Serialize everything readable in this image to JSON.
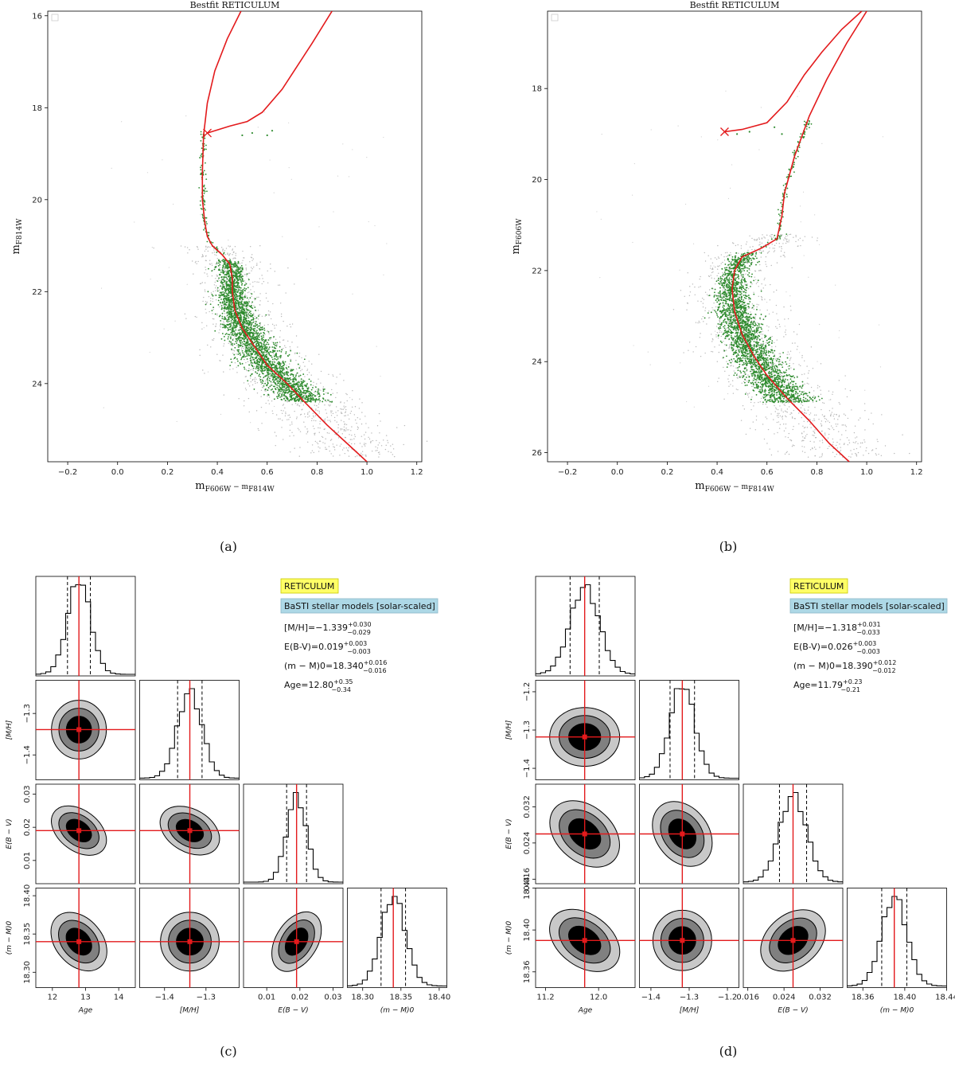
{
  "captions": [
    "(a)",
    "(b)",
    "(c)",
    "(d)"
  ],
  "colors": {
    "isochrone": "#e31a1c",
    "members": "#2e8b2e",
    "field": "#b8b8b8",
    "title_box": "#ffff66",
    "model_box": "#add8e6"
  },
  "chart_data": [
    {
      "type": "scatter",
      "title": "Bestfit RETICULUM",
      "xlabel": "mF606W − mF814W",
      "ylabel": "mF814W",
      "xlim": [
        -0.28,
        1.22
      ],
      "ylim": [
        25.7,
        15.9
      ],
      "y_inverted": true,
      "xticks": [
        -0.2,
        0.0,
        0.2,
        0.4,
        0.6,
        0.8,
        1.0,
        1.2
      ],
      "xtick_labels": [
        "−0.2",
        "0.0",
        "0.2",
        "0.4",
        "0.6",
        "0.8",
        "1.0",
        "1.2"
      ],
      "yticks": [
        16,
        18,
        20,
        22,
        24
      ],
      "ytick_labels": [
        "16",
        "18",
        "20",
        "22",
        "24"
      ],
      "grid": false,
      "isochrone": {
        "rgb": [
          [
            0.495,
            15.9
          ],
          [
            0.44,
            16.5
          ],
          [
            0.39,
            17.2
          ],
          [
            0.36,
            17.9
          ],
          [
            0.345,
            18.6
          ],
          [
            0.34,
            19.4
          ],
          [
            0.34,
            20.0
          ],
          [
            0.35,
            20.5
          ],
          [
            0.36,
            20.8
          ],
          [
            0.38,
            21.0
          ],
          [
            0.42,
            21.2
          ],
          [
            0.45,
            21.4
          ],
          [
            0.46,
            21.7
          ],
          [
            0.46,
            22.0
          ],
          [
            0.47,
            22.4
          ],
          [
            0.5,
            22.8
          ],
          [
            0.55,
            23.2
          ],
          [
            0.6,
            23.6
          ],
          [
            0.68,
            24.0
          ],
          [
            0.75,
            24.4
          ],
          [
            0.84,
            24.9
          ],
          [
            0.92,
            25.3
          ],
          [
            1.0,
            25.7
          ]
        ],
        "hb": [
          [
            0.36,
            18.55
          ],
          [
            0.45,
            18.4
          ],
          [
            0.52,
            18.3
          ],
          [
            0.58,
            18.1
          ],
          [
            0.66,
            17.6
          ],
          [
            0.72,
            17.1
          ],
          [
            0.78,
            16.6
          ],
          [
            0.86,
            15.9
          ]
        ],
        "marker": [
          0.36,
          18.55
        ]
      },
      "members": {
        "ms_y": [
          21.3,
          24.4
        ],
        "ms_to": [
          0.47,
          22.0
        ],
        "ms_spread": 0.025,
        "rgb_y": [
          18.5,
          21.2
        ],
        "n": 2600,
        "hb_points": [
          [
            0.5,
            18.6
          ],
          [
            0.54,
            18.55
          ],
          [
            0.6,
            18.6
          ],
          [
            0.62,
            18.5
          ]
        ]
      },
      "field": {
        "y": [
          21.0,
          25.6
        ],
        "n": 1200,
        "spread": 0.07
      }
    },
    {
      "type": "scatter",
      "title": "Bestfit RETICULUM",
      "xlabel": "mF606W − mF814W",
      "ylabel": "mF606W",
      "xlim": [
        -0.28,
        1.22
      ],
      "ylim": [
        26.2,
        16.3
      ],
      "y_inverted": true,
      "xticks": [
        -0.2,
        0.0,
        0.2,
        0.4,
        0.6,
        0.8,
        1.0,
        1.2
      ],
      "xtick_labels": [
        "−0.2",
        "0.0",
        "0.2",
        "0.4",
        "0.6",
        "0.8",
        "1.0",
        "1.2"
      ],
      "yticks": [
        18,
        20,
        22,
        24,
        26
      ],
      "ytick_labels": [
        "18",
        "20",
        "22",
        "24",
        "26"
      ],
      "grid": false,
      "isochrone": {
        "rgb": [
          [
            1.0,
            16.3
          ],
          [
            0.92,
            17.0
          ],
          [
            0.84,
            17.8
          ],
          [
            0.77,
            18.6
          ],
          [
            0.71,
            19.5
          ],
          [
            0.67,
            20.3
          ],
          [
            0.66,
            20.8
          ],
          [
            0.64,
            21.3
          ],
          [
            0.58,
            21.5
          ],
          [
            0.5,
            21.7
          ],
          [
            0.47,
            22.0
          ],
          [
            0.46,
            22.4
          ],
          [
            0.47,
            22.9
          ],
          [
            0.5,
            23.4
          ],
          [
            0.55,
            23.9
          ],
          [
            0.6,
            24.3
          ],
          [
            0.68,
            24.8
          ],
          [
            0.77,
            25.3
          ],
          [
            0.85,
            25.8
          ],
          [
            0.93,
            26.2
          ]
        ],
        "hb": [
          [
            0.43,
            18.95
          ],
          [
            0.5,
            18.9
          ],
          [
            0.6,
            18.75
          ],
          [
            0.68,
            18.3
          ],
          [
            0.75,
            17.7
          ],
          [
            0.82,
            17.2
          ],
          [
            0.9,
            16.7
          ],
          [
            0.98,
            16.3
          ]
        ],
        "marker": [
          0.43,
          18.95
        ]
      },
      "members": {
        "ms_y": [
          21.6,
          24.9
        ],
        "ms_to": [
          0.47,
          22.4
        ],
        "ms_spread": 0.025,
        "rgb_y": [
          18.7,
          21.5
        ],
        "n": 2600,
        "hb_points": [
          [
            0.48,
            19.0
          ],
          [
            0.53,
            18.95
          ],
          [
            0.63,
            18.85
          ],
          [
            0.66,
            19.0
          ]
        ]
      },
      "field": {
        "y": [
          21.2,
          26.1
        ],
        "n": 1200,
        "spread": 0.07
      }
    },
    {
      "type": "corner",
      "title_box": "RETICULUM",
      "model_box": "BaSTI stellar models [solar-scaled]",
      "params": [
        "Age",
        "[M/H]",
        "E(B − V)",
        "(m − M)0"
      ],
      "results": [
        {
          "name": "[M/H]",
          "value": "−1.339",
          "plus": "+0.030",
          "minus": "−0.029"
        },
        {
          "name": "E(B-V)",
          "value": "0.019",
          "plus": "+0.003",
          "minus": "−0.003"
        },
        {
          "name": "(m − M)0",
          "value": "18.340",
          "plus": "+0.016",
          "minus": "−0.016"
        },
        {
          "name": "Age",
          "value": "12.80",
          "plus": "+0.35",
          "minus": "−0.34"
        }
      ],
      "means": [
        12.8,
        -1.339,
        0.019,
        18.34
      ],
      "sigmas": [
        0.345,
        0.0295,
        0.003,
        0.016
      ],
      "ranges": [
        [
          11.5,
          14.5
        ],
        [
          -1.46,
          -1.22
        ],
        [
          0.003,
          0.033
        ],
        [
          18.28,
          18.41
        ]
      ],
      "ticks": [
        [
          12,
          13,
          14
        ],
        [
          -1.4,
          -1.3
        ],
        [
          0.01,
          0.02,
          0.03
        ],
        [
          18.3,
          18.35,
          18.4
        ]
      ],
      "tick_labels": [
        [
          "12",
          "13",
          "14"
        ],
        [
          "−1.4",
          "−1.3"
        ],
        [
          "0.01",
          "0.02",
          "0.03"
        ],
        [
          "18.30",
          "18.35",
          "18.40"
        ]
      ],
      "correlations": [
        [
          1,
          0,
          -0.5,
          -0.5
        ],
        [
          0,
          1,
          -0.35,
          0
        ],
        [
          -0.5,
          -0.35,
          1,
          0.45
        ],
        [
          -0.5,
          0,
          0.45,
          1
        ]
      ]
    },
    {
      "type": "corner",
      "title_box": "RETICULUM",
      "model_box": "BaSTI stellar models [solar-scaled]",
      "params": [
        "Age",
        "[M/H]",
        "E(B − V)",
        "(m − M)0"
      ],
      "results": [
        {
          "name": "[M/H]",
          "value": "−1.318",
          "plus": "+0.031",
          "minus": "−0.033"
        },
        {
          "name": "E(B-V)",
          "value": "0.026",
          "plus": "+0.003",
          "minus": "−0.003"
        },
        {
          "name": "(m − M)0",
          "value": "18.390",
          "plus": "+0.012",
          "minus": "−0.012"
        },
        {
          "name": "Age",
          "value": "11.79",
          "plus": "+0.23",
          "minus": "−0.21"
        }
      ],
      "means": [
        11.79,
        -1.318,
        0.026,
        18.39
      ],
      "sigmas": [
        0.22,
        0.032,
        0.003,
        0.012
      ],
      "ranges": [
        [
          11.05,
          12.55
        ],
        [
          -1.43,
          -1.17
        ],
        [
          0.015,
          0.037
        ],
        [
          18.345,
          18.44
        ]
      ],
      "ticks": [
        [
          11.2,
          12.0
        ],
        [
          -1.4,
          -1.3,
          -1.2
        ],
        [
          0.016,
          0.024,
          0.032
        ],
        [
          18.36,
          18.4,
          18.44
        ]
      ],
      "tick_labels": [
        [
          "11.2",
          "12.0"
        ],
        [
          "−1.4",
          "−1.3",
          "−1.2"
        ],
        [
          "0.016",
          "0.024",
          "0.032"
        ],
        [
          "18.36",
          "18.40",
          "18.44"
        ]
      ],
      "correlations": [
        [
          1,
          0,
          -0.5,
          -0.45
        ],
        [
          0,
          1,
          -0.35,
          0
        ],
        [
          -0.5,
          -0.35,
          1,
          0.45
        ],
        [
          -0.45,
          0,
          0.45,
          1
        ]
      ]
    }
  ]
}
